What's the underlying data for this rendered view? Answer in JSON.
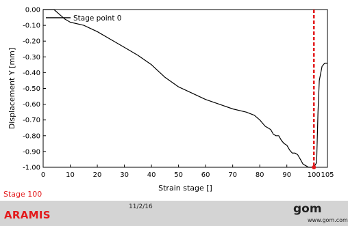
{
  "chart_data": {
    "type": "line",
    "xlabel": "Strain stage []",
    "ylabel": "Displacement Y [mm]",
    "xlim": [
      0,
      105
    ],
    "ylim": [
      -1.0,
      0.0
    ],
    "xticks": [
      0,
      10,
      20,
      30,
      40,
      50,
      60,
      70,
      80,
      90,
      100,
      105
    ],
    "yticks": [
      0.0,
      -0.1,
      -0.2,
      -0.3,
      -0.4,
      -0.5,
      -0.6,
      -0.7,
      -0.8,
      -0.9,
      -1.0
    ],
    "ytick_labels": [
      "0.00",
      "-0.10",
      "-0.20",
      "-0.30",
      "-0.40",
      "-0.50",
      "-0.60",
      "-0.70",
      "-0.80",
      "-0.90",
      "-1.00"
    ],
    "grid": false,
    "legend_position": "top-left",
    "series": [
      {
        "name": "Stage point 0",
        "color": "#000000",
        "x": [
          0,
          2,
          4,
          6,
          8,
          10,
          15,
          20,
          25,
          30,
          35,
          40,
          45,
          50,
          55,
          60,
          65,
          70,
          75,
          78,
          80,
          82,
          84,
          85,
          86,
          87,
          88,
          89,
          90,
          91,
          92,
          93,
          94,
          95,
          96,
          97,
          98,
          99,
          100,
          101,
          101.5,
          102,
          103,
          104,
          105
        ],
        "y": [
          0.0,
          0.0,
          0.0,
          -0.03,
          -0.06,
          -0.08,
          -0.1,
          -0.14,
          -0.19,
          -0.24,
          -0.29,
          -0.35,
          -0.43,
          -0.49,
          -0.53,
          -0.57,
          -0.6,
          -0.63,
          -0.65,
          -0.67,
          -0.7,
          -0.74,
          -0.76,
          -0.79,
          -0.8,
          -0.8,
          -0.83,
          -0.85,
          -0.86,
          -0.89,
          -0.91,
          -0.91,
          -0.92,
          -0.95,
          -0.98,
          -0.99,
          -1.0,
          -1.0,
          -1.0,
          -0.97,
          -0.65,
          -0.45,
          -0.36,
          -0.34,
          -0.34
        ]
      }
    ],
    "marker_line": {
      "x": 100,
      "color": "#e31a1c",
      "style": "dashed"
    },
    "marker_point": {
      "x": 100,
      "y": -1.0,
      "color": "#e31a1c"
    }
  },
  "stage_label": "Stage 100",
  "footer": {
    "brand": "ARAMIS",
    "date": "11/2/16",
    "logo": "gom",
    "url": "www.gom.com"
  }
}
